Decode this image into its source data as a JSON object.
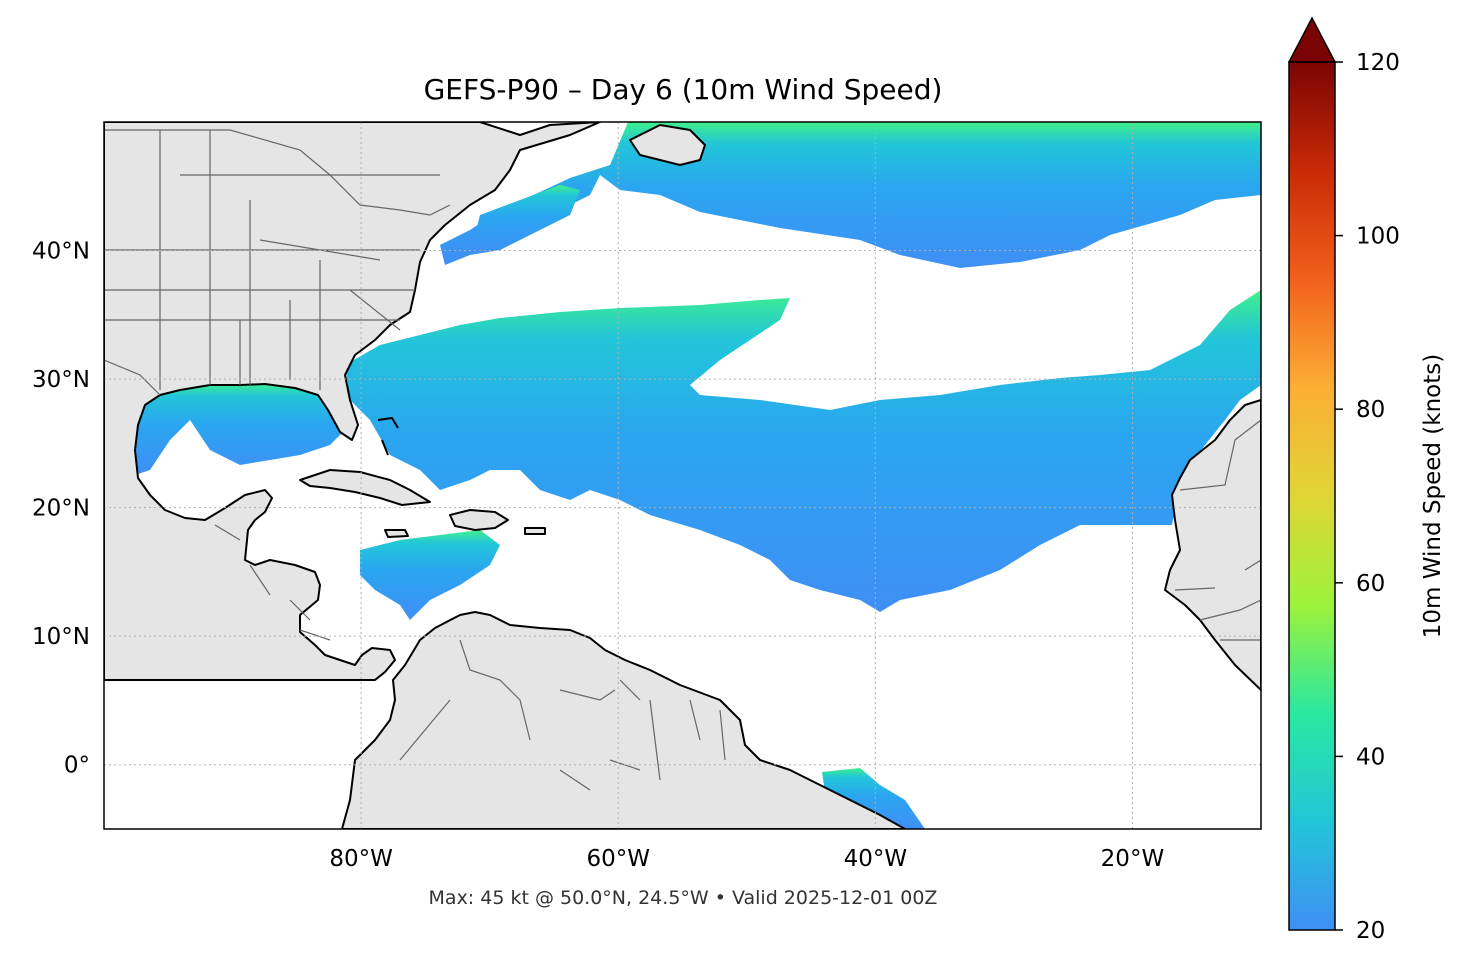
{
  "title": "GEFS-P90 – Day 6 (10m Wind Speed)",
  "footnote": "Max: 45 kt @ 50.0°N, 24.5°W • Valid 2025-12-01 00Z",
  "map": {
    "lon_range": [
      -100,
      -10
    ],
    "lat_range": [
      -5,
      50
    ],
    "gridlines": true,
    "lon_ticks": [
      {
        "value": -80,
        "label": "80°W"
      },
      {
        "value": -60,
        "label": "60°W"
      },
      {
        "value": -40,
        "label": "40°W"
      },
      {
        "value": -20,
        "label": "20°W"
      }
    ],
    "lat_ticks": [
      {
        "value": 40,
        "label": "40°N"
      },
      {
        "value": 30,
        "label": "30°N"
      },
      {
        "value": 20,
        "label": "20°N"
      },
      {
        "value": 10,
        "label": "10°N"
      },
      {
        "value": 0,
        "label": "0°"
      }
    ],
    "colors": {
      "land": "#e5e5e5",
      "coast": "#000000",
      "borders": "#666666",
      "ocean": "#ffffff",
      "wind_low": "#3f8ff5",
      "wind_mid": "#22c6d8",
      "wind_high": "#3ff08a"
    }
  },
  "colorbar": {
    "label": "10m Wind Speed (knots)",
    "range": [
      20,
      120
    ],
    "extend": "max",
    "ticks": [
      {
        "value": 120,
        "label": "120"
      },
      {
        "value": 100,
        "label": "100"
      },
      {
        "value": 80,
        "label": "80"
      },
      {
        "value": 60,
        "label": "60"
      },
      {
        "value": 40,
        "label": "40"
      },
      {
        "value": 20,
        "label": "20"
      }
    ],
    "stops": [
      "#3f8ff5",
      "#22c6d8",
      "#2ae8a0",
      "#9df23a",
      "#e0d535",
      "#fcae35",
      "#f2601b",
      "#c92a06",
      "#7a0403"
    ]
  }
}
